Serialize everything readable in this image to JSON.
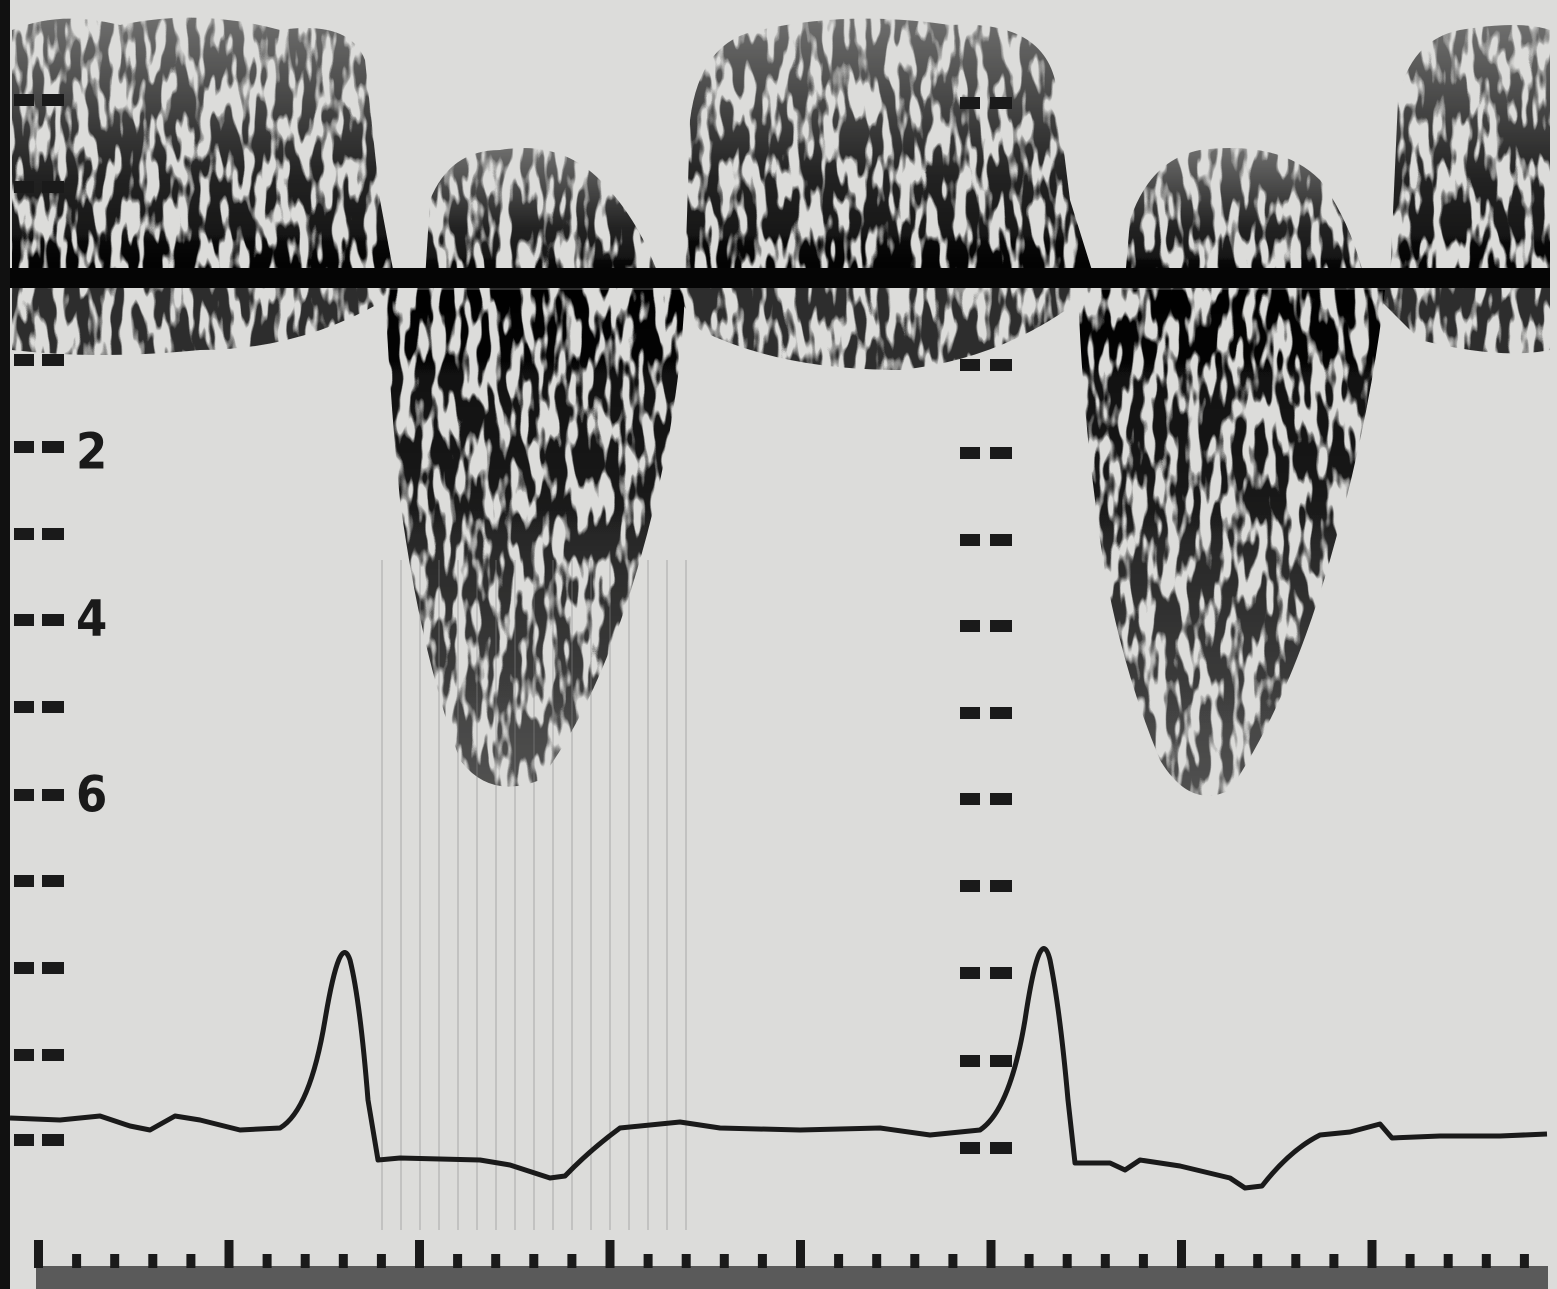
{
  "scale_labels": [
    "2",
    "4",
    "6"
  ]
}
